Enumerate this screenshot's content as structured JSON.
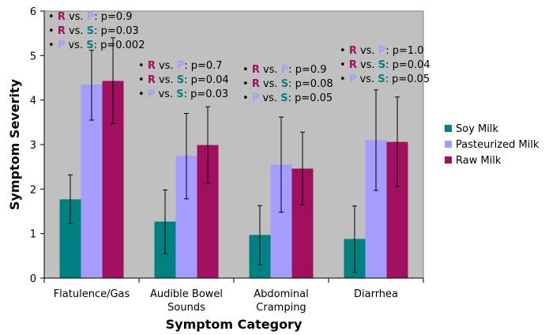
{
  "chart_data": {
    "type": "bar",
    "xlabel": "Symptom Category",
    "ylabel": "Symptom Severity",
    "ylim": [
      0,
      6
    ],
    "yticks": [
      "0",
      "1",
      "2",
      "3",
      "4",
      "5",
      "6"
    ],
    "grid": false,
    "legend_position": "right",
    "categories": [
      [
        "Flatulence/Gas"
      ],
      [
        "Audible Bowel",
        "Sounds"
      ],
      [
        "Abdominal",
        "Cramping"
      ],
      [
        "Diarrhea"
      ]
    ],
    "series": [
      {
        "name": "Soy Milk",
        "color": "#008080",
        "values": [
          1.77,
          1.27,
          0.97,
          0.88
        ],
        "err_low": [
          1.23,
          0.55,
          0.3,
          0.13
        ],
        "err_high": [
          2.32,
          1.98,
          1.63,
          1.62
        ]
      },
      {
        "name": "Pasteurized Milk",
        "color": "#a59cff",
        "values": [
          4.35,
          2.75,
          2.55,
          3.1
        ],
        "err_low": [
          3.55,
          1.78,
          1.48,
          1.97
        ],
        "err_high": [
          5.12,
          3.7,
          3.62,
          4.23
        ]
      },
      {
        "name": "Raw Milk",
        "color": "#a0105f",
        "values": [
          4.43,
          2.99,
          2.46,
          3.06
        ],
        "err_low": [
          3.47,
          2.13,
          1.65,
          2.06
        ],
        "err_high": [
          5.4,
          3.85,
          3.28,
          4.07
        ]
      }
    ],
    "annotations": [
      [
        {
          "a": "R",
          "b": "P",
          "p": "p=0.9"
        },
        {
          "a": "R",
          "b": "S",
          "p": "p=0.03"
        },
        {
          "a": "P",
          "b": "S",
          "p": "p=0.002"
        }
      ],
      [
        {
          "a": "R",
          "b": "P",
          "p": "p=0.7"
        },
        {
          "a": "R",
          "b": "S",
          "p": "p=0.04"
        },
        {
          "a": "P",
          "b": "S",
          "p": "p=0.03"
        }
      ],
      [
        {
          "a": "R",
          "b": "P",
          "p": "p=0.9"
        },
        {
          "a": "R",
          "b": "S",
          "p": "p=0.08"
        },
        {
          "a": "P",
          "b": "S",
          "p": "p=0.05"
        }
      ],
      [
        {
          "a": "R",
          "b": "P",
          "p": "p=1.0"
        },
        {
          "a": "R",
          "b": "S",
          "p": "p=0.04"
        },
        {
          "a": "P",
          "b": "S",
          "p": "p=0.05"
        }
      ]
    ],
    "annotation_colors": {
      "R": "#a0105f",
      "P": "#a59cff",
      "S": "#008080"
    },
    "annotation_connector": "vs.",
    "bullet": "•",
    "plot_background": "#c0c0c0"
  }
}
